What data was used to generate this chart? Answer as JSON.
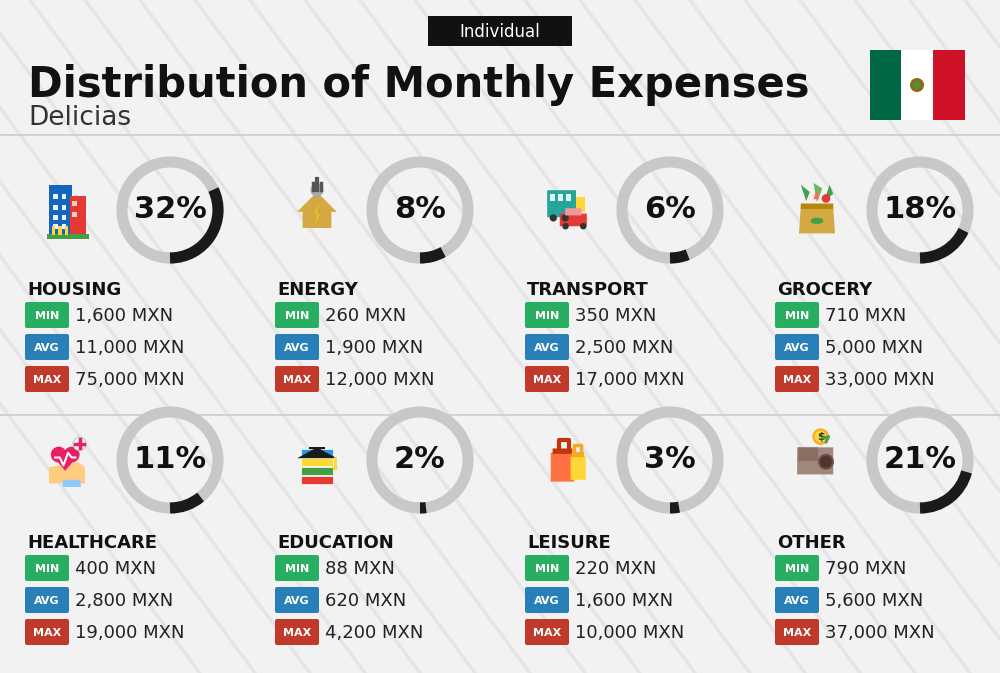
{
  "title": "Distribution of Monthly Expenses",
  "subtitle": "Individual",
  "city": "Delicias",
  "bg_color": "#f2f2f2",
  "categories": [
    {
      "name": "HOUSING",
      "pct": 32,
      "min": "1,600 MXN",
      "avg": "11,000 MXN",
      "max": "75,000 MXN",
      "col": 0,
      "row": 0
    },
    {
      "name": "ENERGY",
      "pct": 8,
      "min": "260 MXN",
      "avg": "1,900 MXN",
      "max": "12,000 MXN",
      "col": 1,
      "row": 0
    },
    {
      "name": "TRANSPORT",
      "pct": 6,
      "min": "350 MXN",
      "avg": "2,500 MXN",
      "max": "17,000 MXN",
      "col": 2,
      "row": 0
    },
    {
      "name": "GROCERY",
      "pct": 18,
      "min": "710 MXN",
      "avg": "5,000 MXN",
      "max": "33,000 MXN",
      "col": 3,
      "row": 0
    },
    {
      "name": "HEALTHCARE",
      "pct": 11,
      "min": "400 MXN",
      "avg": "2,800 MXN",
      "max": "19,000 MXN",
      "col": 0,
      "row": 1
    },
    {
      "name": "EDUCATION",
      "pct": 2,
      "min": "88 MXN",
      "avg": "620 MXN",
      "max": "4,200 MXN",
      "col": 1,
      "row": 1
    },
    {
      "name": "LEISURE",
      "pct": 3,
      "min": "220 MXN",
      "avg": "1,600 MXN",
      "max": "10,000 MXN",
      "col": 2,
      "row": 1
    },
    {
      "name": "OTHER",
      "pct": 21,
      "min": "790 MXN",
      "avg": "5,600 MXN",
      "max": "37,000 MXN",
      "col": 3,
      "row": 1
    }
  ],
  "color_min": "#27ae60",
  "color_avg": "#2980b9",
  "color_max": "#c0392b",
  "color_white": "#ffffff",
  "title_fontsize": 30,
  "subtitle_fontsize": 12,
  "city_fontsize": 19,
  "cat_fontsize": 13,
  "val_fontsize": 13,
  "pct_fontsize": 22,
  "arc_color_active": "#1a1a1a",
  "arc_color_bg": "#c8c8c8",
  "arc_linewidth": 8
}
